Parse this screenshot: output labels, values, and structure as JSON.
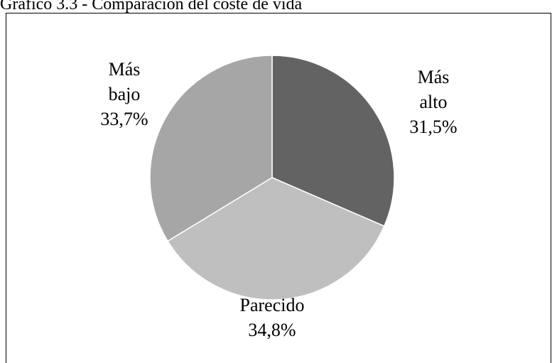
{
  "chart_data": {
    "type": "pie",
    "title": "Gráfico 3.3 - Comparación del coste de vida",
    "categories": [
      "Más alto",
      "Parecido",
      "Más bajo"
    ],
    "values": [
      31.5,
      34.8,
      33.7
    ],
    "value_labels": [
      "31,5%",
      "34,8%",
      "33,7%"
    ],
    "colors": [
      "#636363",
      "#bfbfbf",
      "#a6a6a6"
    ]
  }
}
